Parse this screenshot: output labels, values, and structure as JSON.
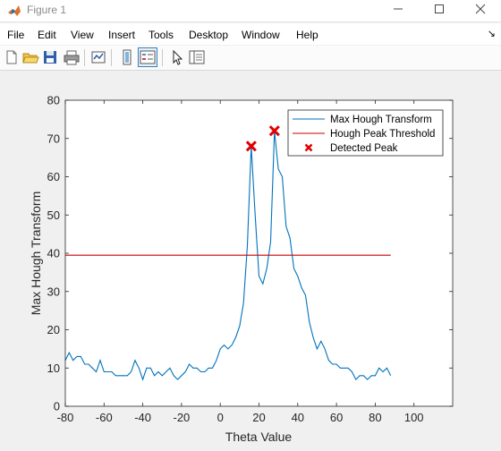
{
  "window": {
    "title": "Figure 1"
  },
  "menu": [
    "File",
    "Edit",
    "View",
    "Insert",
    "Tools",
    "Desktop",
    "Window",
    "Help"
  ],
  "toolbar": {
    "buttons": [
      "new-figure-icon",
      "open-folder-icon",
      "save-icon",
      "print-icon",
      "link-plot-icon",
      "colorbar-icon",
      "legend-icon",
      "pointer-icon",
      "property-inspector-icon"
    ]
  },
  "colors": {
    "series": "#0072bd",
    "threshold": "#cc0000",
    "peaks": "#e00000"
  },
  "chart_data": {
    "type": "line",
    "xlabel": "Theta Value",
    "ylabel": "Max Hough Transform",
    "xlim": [
      -80,
      120
    ],
    "ylim": [
      0,
      80
    ],
    "xticks": [
      -80,
      -60,
      -40,
      -20,
      0,
      20,
      40,
      60,
      80,
      100
    ],
    "yticks": [
      0,
      10,
      20,
      30,
      40,
      50,
      60,
      70,
      80
    ],
    "legend_position": "top-right",
    "series": [
      {
        "name": "Max Hough Transform",
        "x": [
          -80,
          -78,
          -76,
          -74,
          -72,
          -70,
          -68,
          -66,
          -64,
          -62,
          -60,
          -58,
          -56,
          -54,
          -52,
          -50,
          -48,
          -46,
          -44,
          -42,
          -40,
          -38,
          -36,
          -34,
          -32,
          -30,
          -28,
          -26,
          -24,
          -22,
          -20,
          -18,
          -16,
          -14,
          -12,
          -10,
          -8,
          -6,
          -4,
          -2,
          0,
          2,
          4,
          6,
          8,
          10,
          12,
          14,
          16,
          18,
          20,
          22,
          24,
          26,
          28,
          30,
          32,
          34,
          36,
          38,
          40,
          42,
          44,
          46,
          48,
          50,
          52,
          54,
          56,
          58,
          60,
          62,
          64,
          66,
          68,
          70,
          72,
          74,
          76,
          78,
          80,
          82,
          84,
          86,
          88
        ],
        "y": [
          12,
          14,
          12,
          13,
          13,
          11,
          11,
          10,
          9,
          12,
          9,
          9,
          9,
          8,
          8,
          8,
          8,
          9,
          12,
          10,
          7,
          10,
          10,
          8,
          9,
          8,
          9,
          10,
          8,
          7,
          8,
          9,
          11,
          10,
          10,
          9,
          9,
          10,
          10,
          12,
          15,
          16,
          15,
          16,
          18,
          21,
          27,
          42,
          68,
          50,
          34,
          32,
          36,
          43,
          72,
          62,
          60,
          47,
          44,
          36,
          34,
          31,
          29,
          22,
          18,
          15,
          17,
          15,
          12,
          11,
          11,
          10,
          10,
          10,
          9,
          7,
          8,
          8,
          7,
          8,
          8,
          10,
          9,
          10,
          8
        ]
      },
      {
        "name": "Hough Peak Threshold",
        "x": [
          -80,
          88
        ],
        "y": [
          39.5,
          39.5
        ]
      },
      {
        "name": "Detected Peak",
        "x": [
          16,
          28
        ],
        "y": [
          68,
          72
        ]
      }
    ]
  }
}
